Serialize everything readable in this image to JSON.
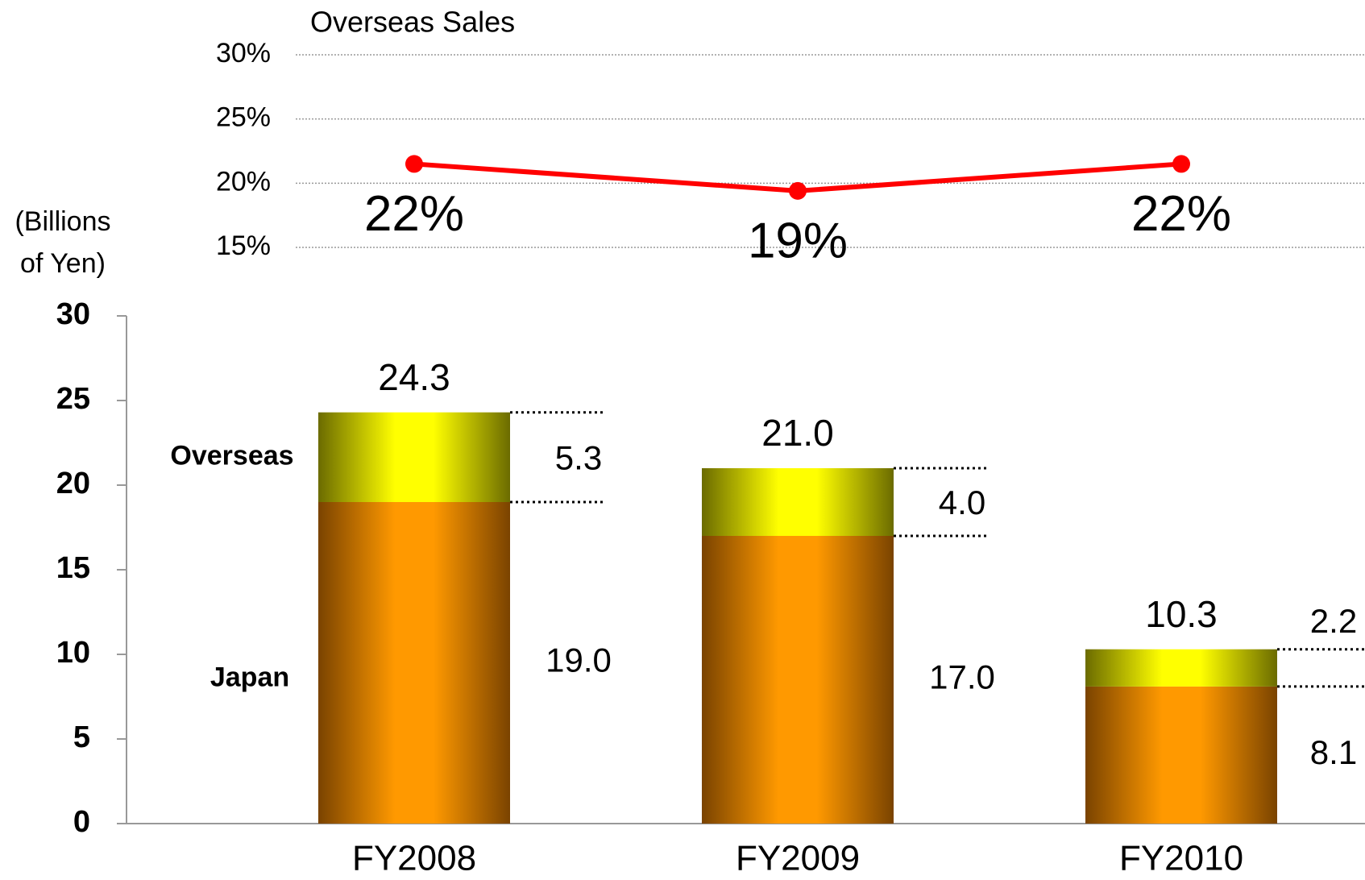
{
  "chart_data": [
    {
      "type": "line",
      "title": "Overseas Sales",
      "categories": [
        "FY2008",
        "FY2009",
        "FY2010"
      ],
      "series": [
        {
          "name": "Overseas Sales",
          "color": "#ff0000",
          "values": [
            21.5,
            19.4,
            21.5
          ],
          "value_labels": [
            "22%",
            "19%",
            "22%"
          ]
        }
      ],
      "ylim": [
        15,
        30
      ],
      "yticks": [
        {
          "value": 15,
          "label": "15%"
        },
        {
          "value": 20,
          "label": "20%"
        },
        {
          "value": 25,
          "label": "25%"
        },
        {
          "value": 30,
          "label": "30%"
        }
      ],
      "grid": true
    },
    {
      "type": "stacked_bar",
      "y_label": [
        "(Billions",
        "of Yen)"
      ],
      "categories": [
        "FY2008",
        "FY2009",
        "FY2010"
      ],
      "series": [
        {
          "name": "Japan",
          "color": "#ff9900",
          "values": [
            19.0,
            17.0,
            8.1
          ],
          "value_labels": [
            "19.0",
            "17.0",
            "8.1"
          ]
        },
        {
          "name": "Overseas",
          "color": "#ffff00",
          "values": [
            5.3,
            4.0,
            2.2
          ],
          "value_labels": [
            "5.3",
            "4.0",
            "2.2"
          ]
        }
      ],
      "totals": [
        24.3,
        21.0,
        10.3
      ],
      "total_labels": [
        "24.3",
        "21.0",
        "10.3"
      ],
      "ylim": [
        0,
        30
      ],
      "yticks": [
        0,
        5,
        10,
        15,
        20,
        25,
        30
      ]
    }
  ]
}
